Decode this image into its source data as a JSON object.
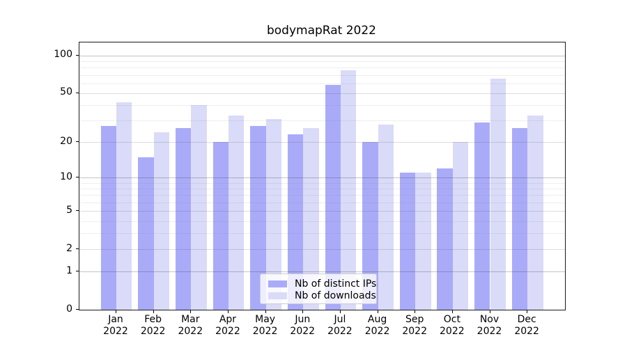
{
  "chart_data": {
    "type": "bar",
    "title": "bodymapRat 2022",
    "categories": [
      "Jan",
      "Feb",
      "Mar",
      "Apr",
      "May",
      "Jun",
      "Jul",
      "Aug",
      "Sep",
      "Oct",
      "Nov",
      "Dec"
    ],
    "x_year": "2022",
    "series": [
      {
        "name": "Nb of distinct IPs",
        "color": "#a9abf8",
        "values": [
          27,
          15,
          26,
          20,
          27,
          23,
          58,
          20,
          11,
          12,
          29,
          26
        ]
      },
      {
        "name": "Nb of downloads",
        "color": "#dadbf8",
        "values": [
          42,
          24,
          40,
          33,
          31,
          26,
          76,
          28,
          11,
          20,
          65,
          33
        ]
      }
    ],
    "yscale": "log1p",
    "ylim": [
      0,
      127
    ],
    "yticks": [
      0,
      1,
      2,
      5,
      10,
      20,
      50,
      100
    ],
    "minor_yticks": [
      3,
      4,
      6,
      7,
      8,
      9,
      30,
      40,
      60,
      70,
      80,
      90
    ],
    "grid": true,
    "legend_position": "lower center",
    "xlabel": "",
    "ylabel": ""
  }
}
